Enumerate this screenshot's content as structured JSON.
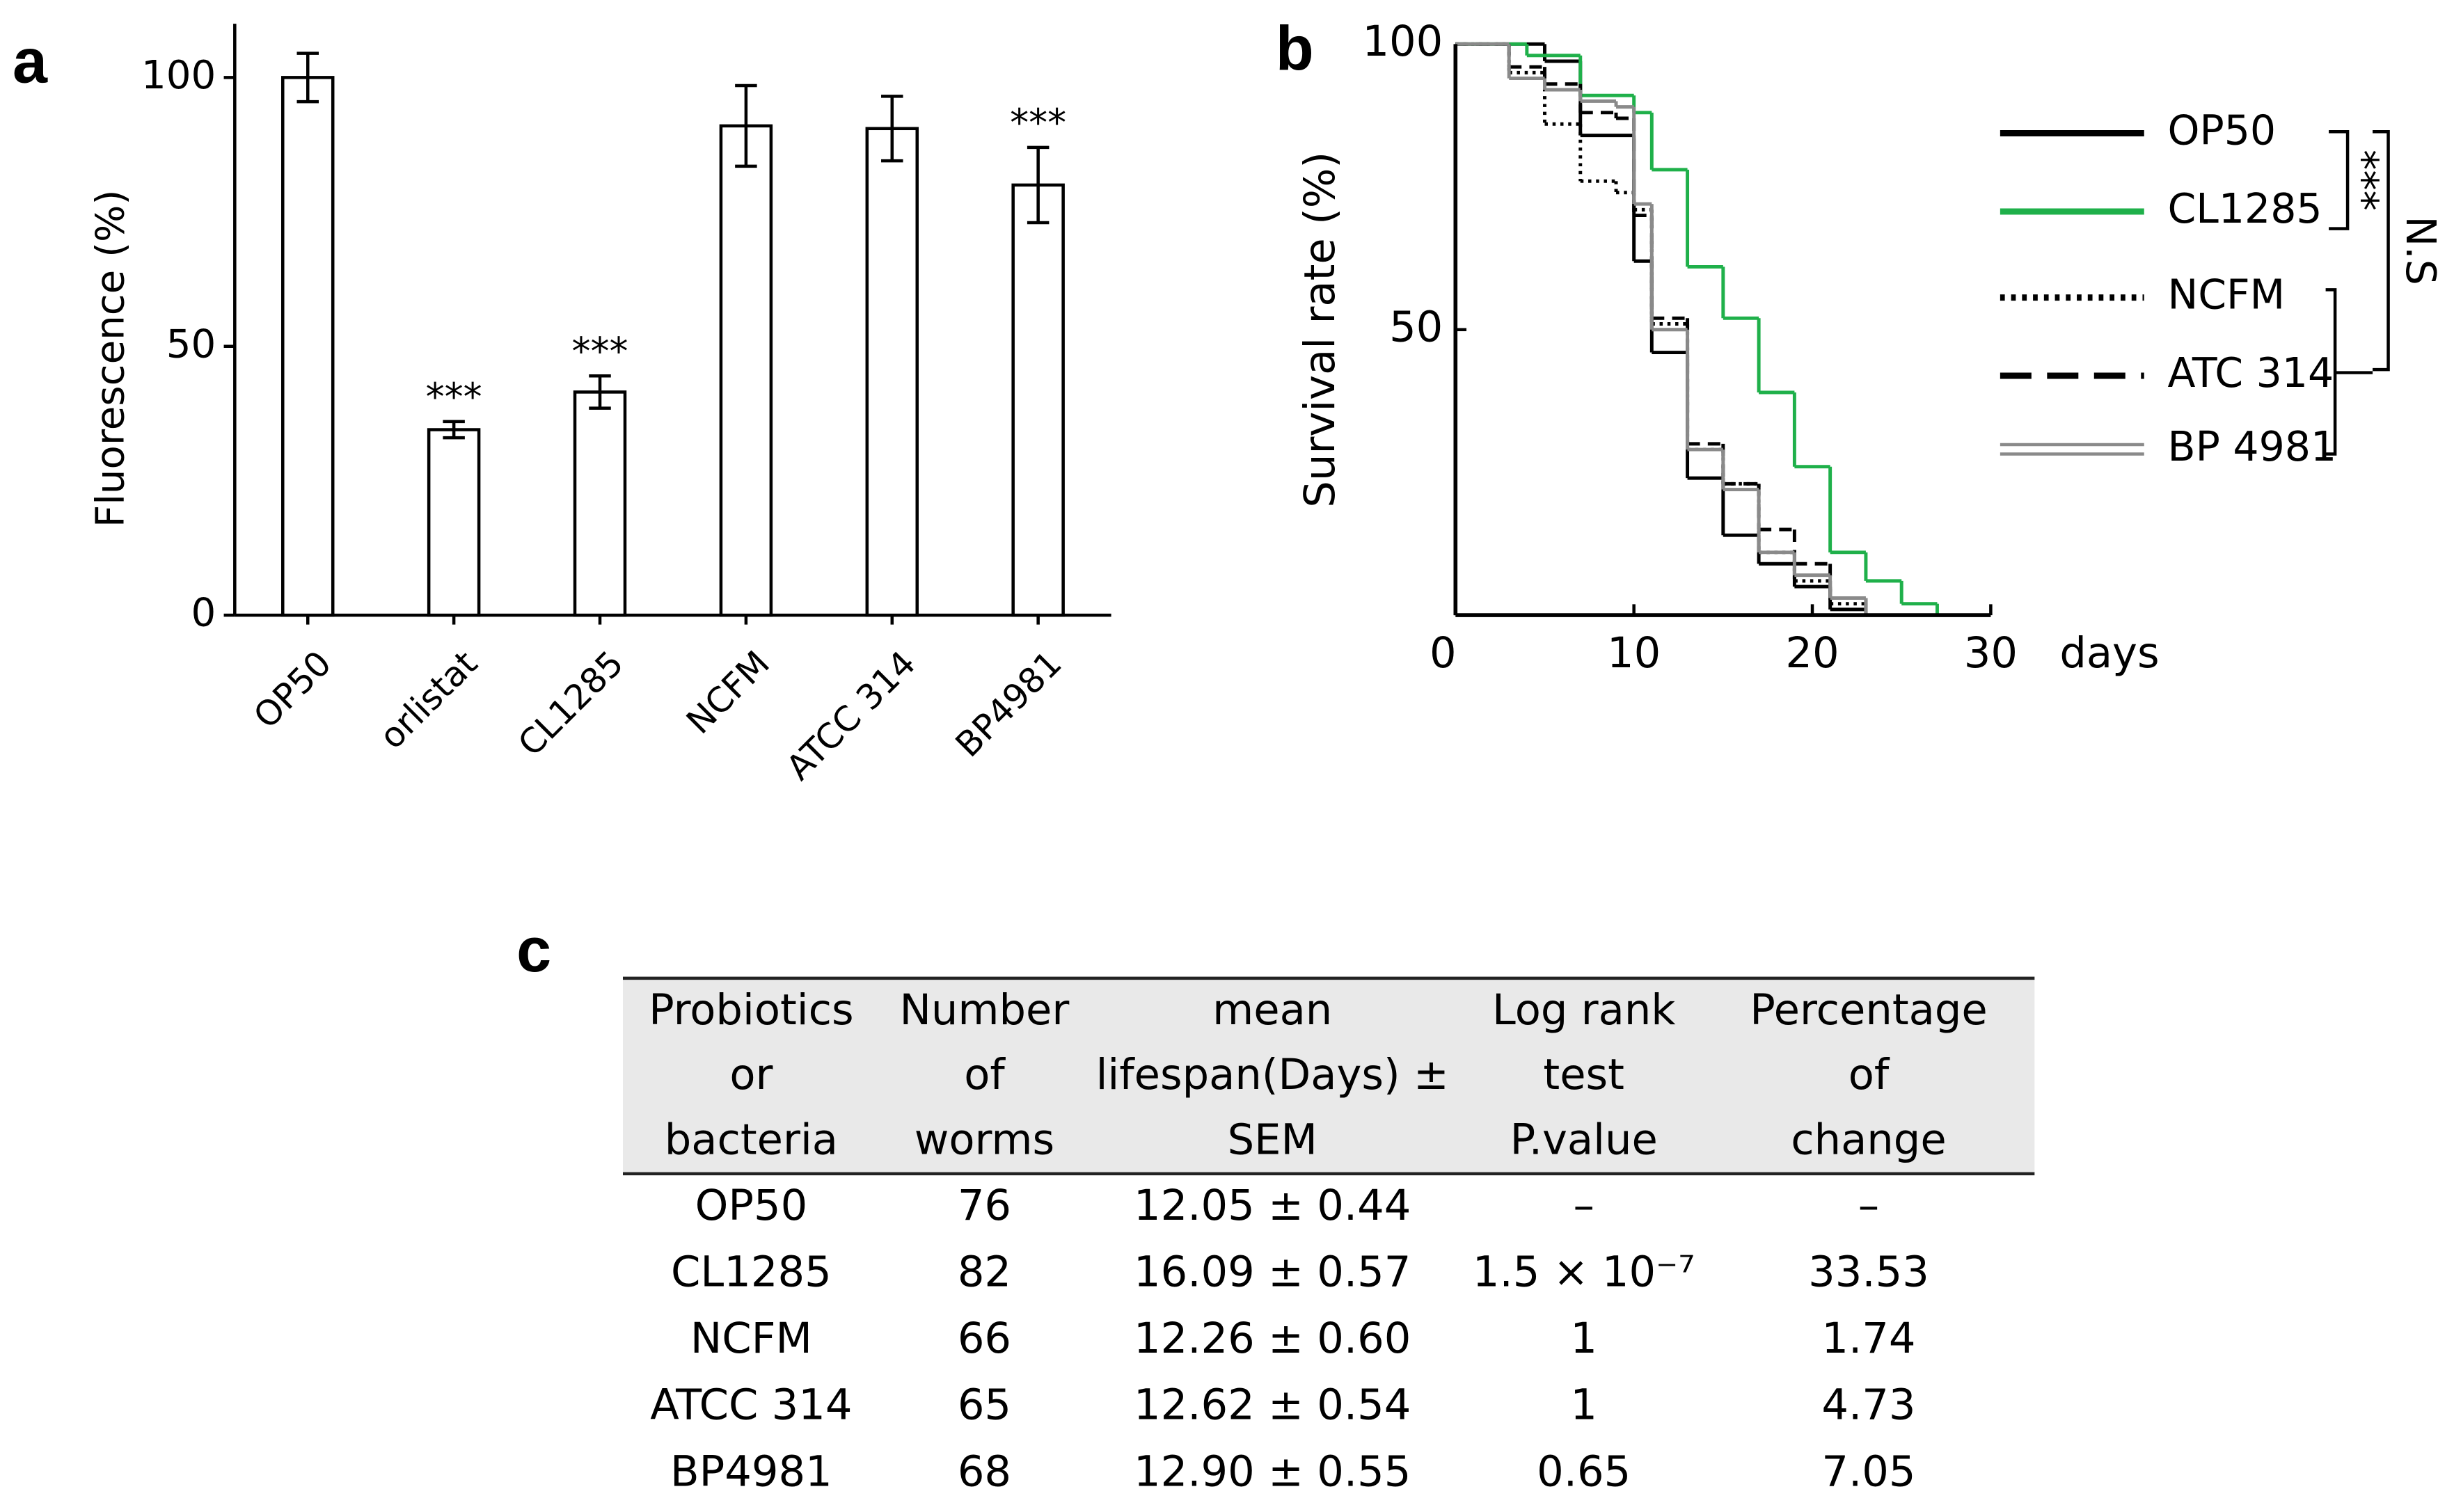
{
  "chart_data": [
    {
      "type": "bar",
      "label": "a",
      "ylabel": "Fluorescence (%)",
      "categories": [
        "OP50",
        "orlistat",
        "CL1285",
        "NCFM",
        "ATCC 314",
        "BP4981"
      ],
      "values": [
        100,
        34.5,
        41.5,
        91,
        90.5,
        80
      ],
      "errors": [
        4.5,
        1.5,
        3,
        7.5,
        6,
        7
      ],
      "significance": [
        null,
        "***",
        "***",
        null,
        null,
        "***"
      ],
      "color": "#ffffff",
      "ylim": [
        0,
        110
      ],
      "yticks": [
        0,
        50,
        100
      ]
    },
    {
      "type": "line",
      "label": "b",
      "ylabel": "Survival rate (%)",
      "xlabel": "days",
      "xlim": [
        0,
        30
      ],
      "xticks": [
        0,
        10,
        20,
        30
      ],
      "ylim": [
        0,
        100
      ],
      "yticks": [
        50,
        100
      ],
      "annotations": [
        "***",
        "N.S"
      ],
      "series": [
        {
          "name": "OP50",
          "color": "#000000",
          "style": "solid",
          "x": [
            0,
            5,
            7,
            10,
            11,
            13,
            15,
            17,
            19,
            21,
            23
          ],
          "values": [
            100,
            97,
            84,
            62,
            46,
            24,
            14,
            9,
            5,
            1,
            0
          ]
        },
        {
          "name": "CL1285",
          "color": "#1fb04a",
          "style": "solid",
          "x": [
            0,
            4,
            7,
            10,
            11,
            13,
            15,
            17,
            19,
            21,
            23,
            25,
            27
          ],
          "values": [
            100,
            98,
            91,
            88,
            78,
            61,
            52,
            39,
            26,
            11,
            6,
            2,
            0
          ]
        },
        {
          "name": "NCFM",
          "color": "#000000",
          "style": "dotted",
          "x": [
            0,
            3,
            5,
            7,
            9,
            10,
            11,
            13,
            15,
            17,
            19,
            21,
            23
          ],
          "values": [
            100,
            95,
            86,
            76,
            74,
            71,
            51,
            29,
            23,
            11,
            6,
            2,
            0
          ]
        },
        {
          "name": "ATC 314",
          "color": "#000000",
          "style": "dashed",
          "x": [
            0,
            3,
            5,
            7,
            9,
            10,
            11,
            13,
            15,
            17,
            19,
            21,
            23
          ],
          "values": [
            100,
            96,
            93,
            88,
            87,
            70,
            52,
            30,
            23,
            15,
            9,
            3,
            0
          ]
        },
        {
          "name": "BP 4981",
          "color": "#8a8a8a",
          "style": "double",
          "x": [
            0,
            3,
            5,
            7,
            9,
            10,
            11,
            13,
            15,
            17,
            19,
            21,
            23
          ],
          "values": [
            100,
            94,
            92,
            90,
            89,
            72,
            50,
            29,
            22,
            11,
            7,
            3,
            0
          ]
        }
      ]
    }
  ],
  "table": {
    "label": "c",
    "header": [
      [
        "Probiotics",
        "or",
        "bacteria"
      ],
      [
        "Number",
        "of",
        "worms"
      ],
      [
        "mean",
        "lifespan(Days) ±",
        "SEM"
      ],
      [
        "Log rank",
        "test",
        "P.value"
      ],
      [
        "Percentage",
        "of",
        "change"
      ]
    ],
    "rows": [
      [
        "OP50",
        "76",
        "12.05 ± 0.44",
        "–",
        "–"
      ],
      [
        "CL1285",
        "82",
        "16.09 ± 0.57",
        "1.5 × 10⁻⁷",
        "33.53"
      ],
      [
        "NCFM",
        "66",
        "12.26 ± 0.60",
        "1",
        "1.74"
      ],
      [
        "ATCC 314",
        "65",
        "12.62 ± 0.54",
        "1",
        "4.73"
      ],
      [
        "BP4981",
        "68",
        "12.90 ± 0.55",
        "0.65",
        "7.05"
      ]
    ]
  }
}
